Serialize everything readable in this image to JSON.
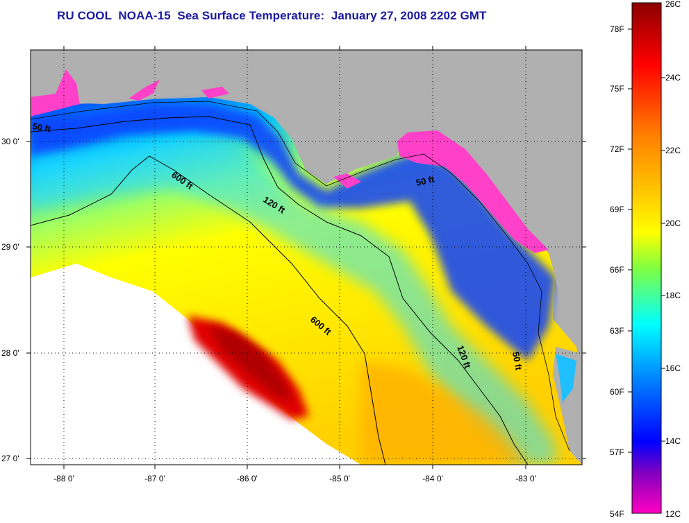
{
  "title": "RU COOL  NOAA-15  Sea Surface Temperature:  January 27, 2008 2202 GMT",
  "map": {
    "lat_labels": [
      "30 0'",
      "29 0'",
      "28 0'",
      "27 0'"
    ],
    "lon_labels": [
      "-88 0'",
      "-87 0'",
      "-86 0'",
      "-85 0'",
      "-84 0'",
      "-83 0'"
    ],
    "contour_labels": {
      "c50_west": "50 ft",
      "c50_north": "50 ft",
      "c50_south": "50 ft",
      "c120_north": "120 ft",
      "c120_south": "120 ft",
      "c600_north": "600 ft",
      "c600_south": "600 ft"
    },
    "colors": {
      "land": "#b0b0b0",
      "no_data": "#ffffff",
      "contour": "#000000"
    }
  },
  "colorbar": {
    "fahrenheit_labels": [
      "78F",
      "75F",
      "72F",
      "69F",
      "66F",
      "63F",
      "60F",
      "57F",
      "54F"
    ],
    "celsius_labels": [
      "26C",
      "24C",
      "22C",
      "20C",
      "18C",
      "16C",
      "14C",
      "12C"
    ],
    "gradient_stops": [
      "#8b0000",
      "#ff0000",
      "#ff8000",
      "#ffc000",
      "#ffff00",
      "#80ff40",
      "#00ffff",
      "#0080ff",
      "#0000ff",
      "#8000c0",
      "#ff00c0"
    ]
  }
}
